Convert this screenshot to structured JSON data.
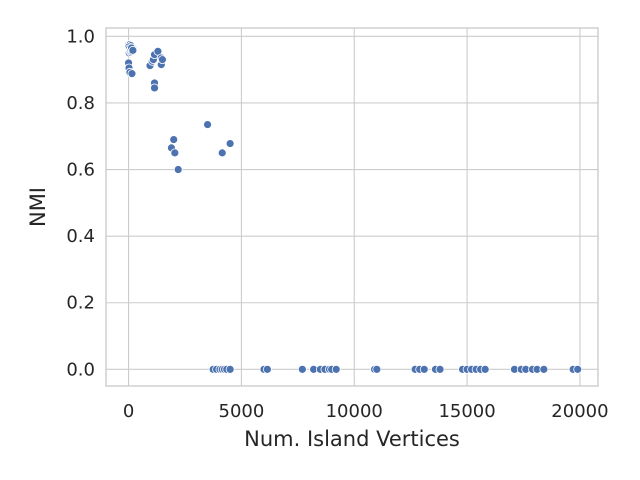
{
  "chart_data": {
    "type": "scatter",
    "title": "",
    "xlabel": "Num. Island Vertices",
    "ylabel": "NMI",
    "xlim": [
      -1000,
      20800
    ],
    "ylim": [
      -0.05,
      1.025
    ],
    "xticks": [
      0,
      5000,
      10000,
      15000,
      20000
    ],
    "xtick_labels": [
      "0",
      "5000",
      "10000",
      "15000",
      "20000"
    ],
    "yticks": [
      0.0,
      0.2,
      0.4,
      0.6,
      0.8,
      1.0
    ],
    "ytick_labels": [
      "0.0",
      "0.2",
      "0.4",
      "0.6",
      "0.8",
      "1.0"
    ],
    "grid": true,
    "legend": "none",
    "colors": {
      "points": "#4c72b0",
      "grid": "#cccccc",
      "text": "#262626"
    },
    "series": [
      {
        "x": [
          5,
          20,
          35,
          50,
          60,
          80,
          100,
          120,
          140,
          160,
          180,
          200,
          30,
          60,
          90,
          120,
          150,
          180,
          10,
          40,
          70,
          100,
          130,
          160,
          0,
          20,
          60,
          150,
          190,
          950,
          1050,
          1100,
          1150,
          1150,
          1150,
          1300,
          1450,
          1450,
          1500,
          1900,
          2000,
          2050,
          2200,
          3500,
          4150,
          4500,
          3750,
          3900,
          4050,
          4150,
          4250,
          4350,
          4500,
          6000,
          6150,
          7700,
          8200,
          8500,
          8700,
          8900,
          9000,
          9200,
          10900,
          11000,
          12700,
          12900,
          13100,
          13600,
          13800,
          14800,
          15000,
          15200,
          15400,
          15600,
          15800,
          17100,
          17400,
          17600,
          17900,
          18100,
          18400,
          19700,
          19900
        ],
        "y": [
          0.975,
          0.97,
          0.965,
          0.975,
          0.968,
          0.96,
          0.972,
          0.966,
          0.962,
          0.958,
          0.955,
          0.963,
          0.95,
          0.958,
          0.952,
          0.962,
          0.955,
          0.96,
          0.968,
          0.963,
          0.957,
          0.96,
          0.965,
          0.955,
          0.92,
          0.905,
          0.892,
          0.888,
          0.958,
          0.912,
          0.925,
          0.93,
          0.945,
          0.86,
          0.845,
          0.955,
          0.935,
          0.915,
          0.93,
          0.665,
          0.69,
          0.65,
          0.6,
          0.735,
          0.65,
          0.678,
          0.0,
          0.0,
          0.0,
          0.0,
          0.0,
          0.0,
          0.0,
          0.0,
          0.0,
          0.0,
          0.0,
          0.0,
          0.0,
          0.0,
          0.0,
          0.0,
          0.0,
          0.0,
          0.0,
          0.0,
          0.0,
          0.0,
          0.0,
          0.0,
          0.0,
          0.0,
          0.0,
          0.0,
          0.0,
          0.0,
          0.0,
          0.0,
          0.0,
          0.0,
          0.0,
          0.0,
          0.0
        ]
      }
    ]
  }
}
